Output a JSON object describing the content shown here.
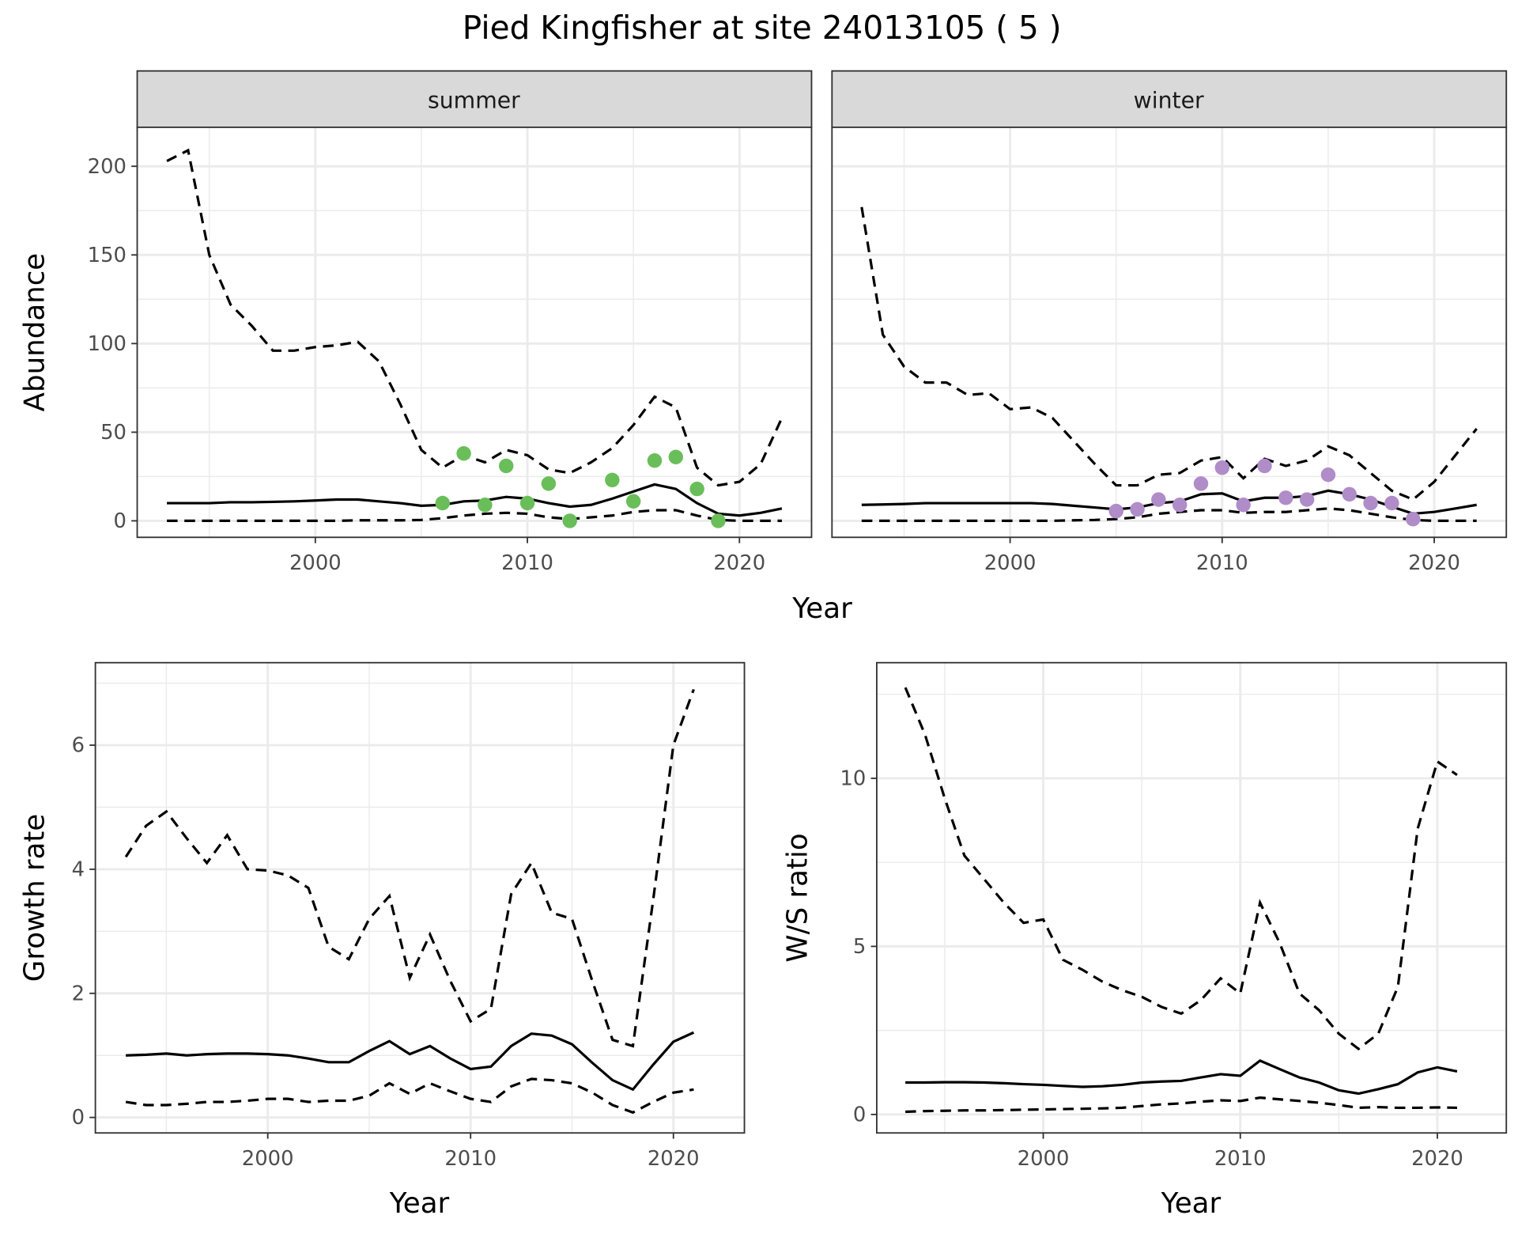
{
  "title": "Pied Kingfisher at site 24013105 ( 5 )",
  "chart_data": [
    {
      "type": "line",
      "facet": "summer",
      "xlabel": "Year",
      "ylabel": "Abundance",
      "xlim": [
        1991.6,
        2023.4
      ],
      "ylim": [
        -9.3,
        222
      ],
      "xticks": [
        2000,
        2010,
        2020
      ],
      "yticks": [
        0,
        50,
        100,
        150,
        200
      ],
      "x": [
        1993,
        1994,
        1995,
        1996,
        1997,
        1998,
        1999,
        2000,
        2001,
        2002,
        2003,
        2004,
        2005,
        2006,
        2007,
        2008,
        2009,
        2010,
        2011,
        2012,
        2013,
        2014,
        2015,
        2016,
        2017,
        2018,
        2019,
        2020,
        2021,
        2022
      ],
      "series": [
        {
          "name": "mean",
          "style": "solid",
          "values": [
            10,
            10,
            10,
            10.5,
            10.5,
            10.7,
            11,
            11.5,
            12,
            12,
            11,
            10,
            8.5,
            9,
            11,
            11.5,
            13.5,
            12.5,
            10,
            8,
            9,
            12.5,
            16.5,
            20.5,
            18,
            10,
            4,
            3,
            4.5,
            7
          ]
        },
        {
          "name": "upper",
          "style": "dashed",
          "values": [
            203,
            209,
            150,
            122,
            110,
            96,
            96,
            98,
            99,
            101,
            90,
            66,
            40,
            30,
            37,
            33,
            40,
            37,
            29,
            27,
            33,
            41,
            54,
            70,
            64,
            30,
            20,
            22,
            32,
            58
          ]
        },
        {
          "name": "lower",
          "style": "dashed",
          "values": [
            0,
            0,
            0,
            0,
            0,
            0,
            0,
            0,
            0,
            0.3,
            0.3,
            0.3,
            0.5,
            1.5,
            3,
            4,
            4.5,
            4,
            2,
            1,
            2,
            3,
            5,
            6,
            6,
            3,
            0.5,
            0,
            0,
            0
          ]
        }
      ],
      "points": {
        "color": "#6ABE5A",
        "x": [
          2006,
          2007,
          2008,
          2009,
          2010,
          2011,
          2012,
          2014,
          2015,
          2016,
          2017,
          2018,
          2019
        ],
        "y": [
          10,
          38,
          9,
          31,
          10,
          21,
          0,
          23,
          11,
          34,
          36,
          18,
          0
        ]
      }
    },
    {
      "type": "line",
      "facet": "winter",
      "xlabel": "Year",
      "ylabel": "Abundance",
      "xlim": [
        1991.6,
        2023.4
      ],
      "ylim": [
        -9.3,
        222
      ],
      "xticks": [
        2000,
        2010,
        2020
      ],
      "yticks": [
        0,
        50,
        100,
        150,
        200
      ],
      "x": [
        1993,
        1994,
        1995,
        1996,
        1997,
        1998,
        1999,
        2000,
        2001,
        2002,
        2003,
        2004,
        2005,
        2006,
        2007,
        2008,
        2009,
        2010,
        2011,
        2012,
        2013,
        2014,
        2015,
        2016,
        2017,
        2018,
        2019,
        2020,
        2021,
        2022
      ],
      "series": [
        {
          "name": "mean",
          "style": "solid",
          "values": [
            9,
            9.2,
            9.5,
            10,
            10,
            10,
            10,
            10,
            10,
            9.5,
            8.5,
            7.5,
            6.5,
            7.5,
            10,
            11,
            15,
            15.5,
            11,
            13,
            13,
            14,
            17,
            15,
            12,
            8,
            4,
            5,
            7,
            9
          ]
        },
        {
          "name": "upper",
          "style": "dashed",
          "values": [
            177,
            105,
            87,
            78,
            78,
            71,
            72,
            63,
            64,
            58,
            45,
            32,
            20,
            20,
            26,
            27,
            34,
            36,
            24,
            35,
            31,
            34,
            42,
            37,
            27,
            17,
            12,
            22,
            37,
            52
          ]
        },
        {
          "name": "lower",
          "style": "dashed",
          "values": [
            0,
            0,
            0,
            0,
            0,
            0,
            0,
            0,
            0,
            0,
            0.3,
            0.5,
            1,
            2,
            4,
            5,
            6,
            6,
            4.5,
            5,
            5,
            6,
            7,
            6,
            4,
            2,
            0.5,
            0,
            0,
            0
          ]
        }
      ],
      "points": {
        "color": "#B08CC8",
        "x": [
          2005,
          2006,
          2007,
          2008,
          2009,
          2010,
          2011,
          2012,
          2013,
          2014,
          2015,
          2016,
          2017,
          2018,
          2019
        ],
        "y": [
          5.5,
          6.5,
          12,
          9,
          21,
          30,
          9,
          31,
          13,
          12,
          26,
          15,
          10,
          10,
          1
        ]
      }
    },
    {
      "type": "line",
      "xlabel": "Year",
      "ylabel": "Growth rate",
      "xlim": [
        1991.5,
        2023.5
      ],
      "ylim": [
        -0.25,
        7.33
      ],
      "xticks": [
        2000,
        2010,
        2020
      ],
      "yticks": [
        0,
        2,
        4,
        6
      ],
      "x": [
        1993,
        1994,
        1995,
        1996,
        1997,
        1998,
        1999,
        2000,
        2001,
        2002,
        2003,
        2004,
        2005,
        2006,
        2007,
        2008,
        2009,
        2010,
        2011,
        2012,
        2013,
        2014,
        2015,
        2016,
        2017,
        2018,
        2019,
        2020,
        2021
      ],
      "series": [
        {
          "name": "mean",
          "style": "solid",
          "values": [
            1.0,
            1.01,
            1.03,
            1.0,
            1.02,
            1.03,
            1.03,
            1.02,
            1.0,
            0.95,
            0.89,
            0.89,
            1.07,
            1.23,
            1.02,
            1.15,
            0.95,
            0.78,
            0.82,
            1.15,
            1.35,
            1.32,
            1.18,
            0.88,
            0.6,
            0.45,
            0.85,
            1.22,
            1.37
          ]
        },
        {
          "name": "upper",
          "style": "dashed",
          "values": [
            4.2,
            4.7,
            4.93,
            4.5,
            4.1,
            4.55,
            4.0,
            3.98,
            3.9,
            3.7,
            2.75,
            2.55,
            3.2,
            3.57,
            2.25,
            2.95,
            2.2,
            1.55,
            1.75,
            3.6,
            4.1,
            3.3,
            3.2,
            2.2,
            1.25,
            1.15,
            3.5,
            6.0,
            6.9
          ]
        },
        {
          "name": "lower",
          "style": "dashed",
          "values": [
            0.25,
            0.2,
            0.2,
            0.22,
            0.25,
            0.25,
            0.27,
            0.3,
            0.3,
            0.25,
            0.27,
            0.27,
            0.35,
            0.55,
            0.38,
            0.55,
            0.42,
            0.3,
            0.25,
            0.5,
            0.62,
            0.6,
            0.55,
            0.4,
            0.2,
            0.08,
            0.25,
            0.4,
            0.45
          ]
        }
      ]
    },
    {
      "type": "line",
      "xlabel": "Year",
      "ylabel": "W/S ratio",
      "xlim": [
        1991.55,
        2023.5
      ],
      "ylim": [
        -0.55,
        13.44
      ],
      "xticks": [
        2000,
        2010,
        2020
      ],
      "yticks": [
        0,
        5,
        10
      ],
      "x": [
        1993,
        1994,
        1995,
        1996,
        1997,
        1998,
        1999,
        2000,
        2001,
        2002,
        2003,
        2004,
        2005,
        2006,
        2007,
        2008,
        2009,
        2010,
        2011,
        2012,
        2013,
        2014,
        2015,
        2016,
        2017,
        2018,
        2019,
        2020,
        2021
      ],
      "series": [
        {
          "name": "mean",
          "style": "solid",
          "values": [
            0.95,
            0.95,
            0.96,
            0.96,
            0.95,
            0.93,
            0.9,
            0.88,
            0.85,
            0.82,
            0.84,
            0.88,
            0.95,
            0.98,
            1.0,
            1.1,
            1.2,
            1.15,
            1.6,
            1.35,
            1.1,
            0.95,
            0.72,
            0.62,
            0.75,
            0.9,
            1.25,
            1.4,
            1.28
          ]
        },
        {
          "name": "upper",
          "style": "dashed",
          "values": [
            12.7,
            11.3,
            9.4,
            7.7,
            7.0,
            6.3,
            5.7,
            5.8,
            4.6,
            4.3,
            3.95,
            3.7,
            3.5,
            3.2,
            3.0,
            3.4,
            4.05,
            3.6,
            6.3,
            5.1,
            3.6,
            3.1,
            2.4,
            1.95,
            2.4,
            3.8,
            8.5,
            10.5,
            10.1
          ]
        },
        {
          "name": "lower",
          "style": "dashed",
          "values": [
            0.08,
            0.1,
            0.11,
            0.12,
            0.12,
            0.13,
            0.14,
            0.15,
            0.16,
            0.17,
            0.18,
            0.2,
            0.25,
            0.3,
            0.33,
            0.38,
            0.42,
            0.4,
            0.5,
            0.45,
            0.4,
            0.35,
            0.28,
            0.2,
            0.22,
            0.2,
            0.2,
            0.21,
            0.2
          ]
        }
      ]
    }
  ]
}
